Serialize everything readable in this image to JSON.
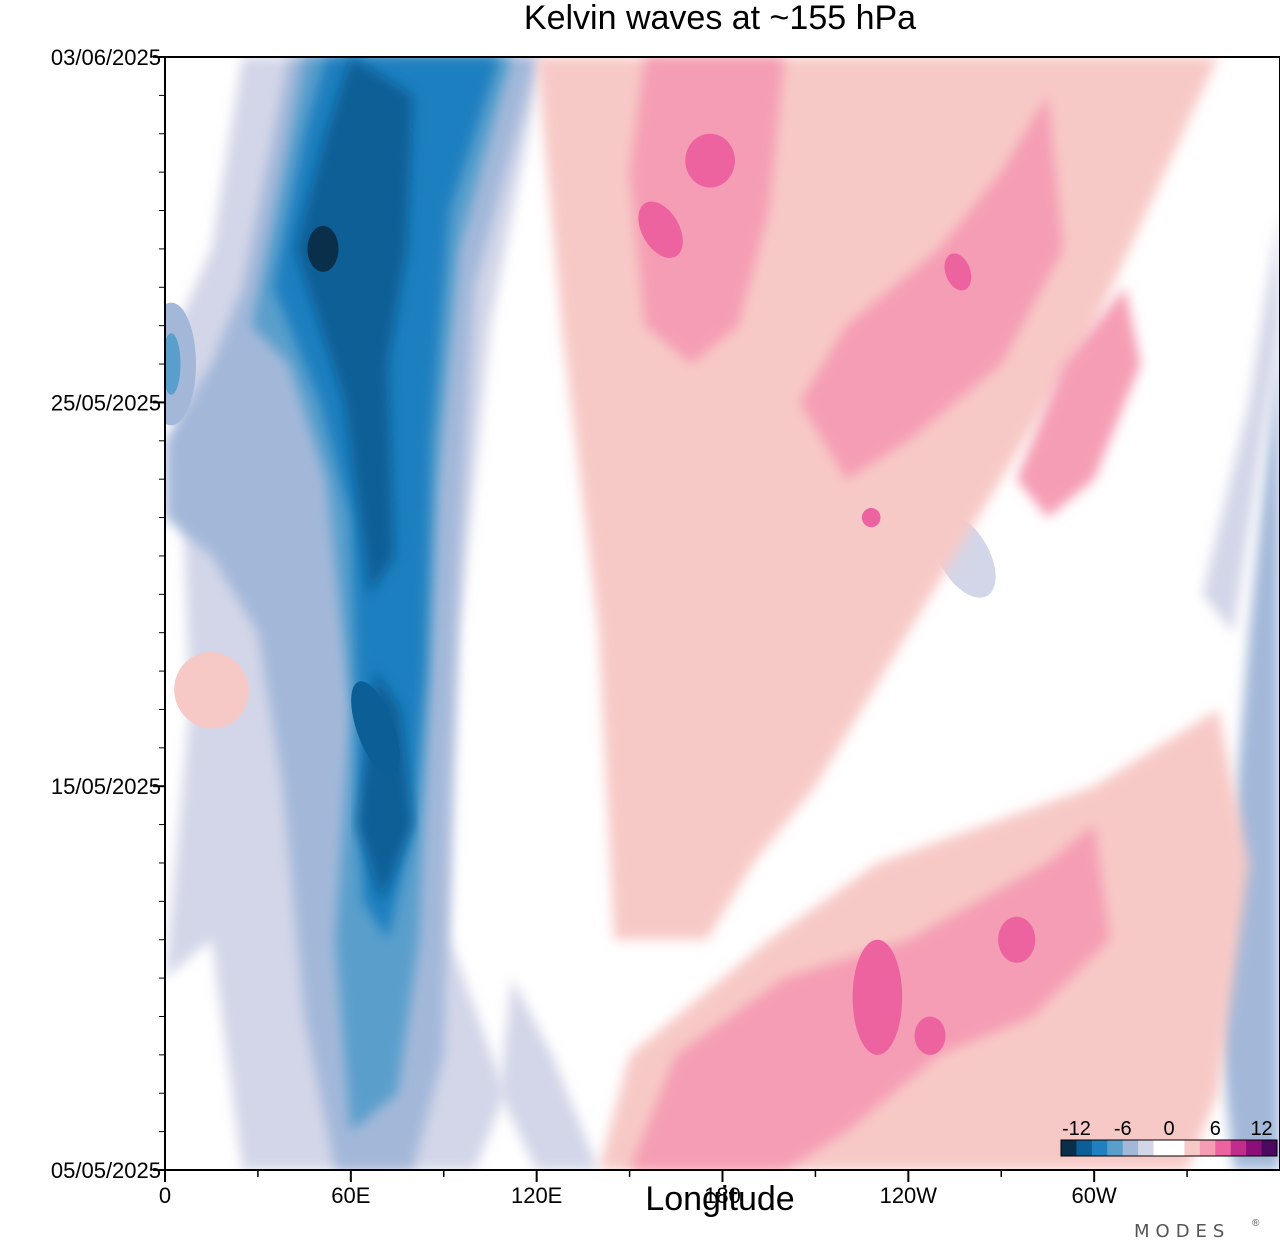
{
  "chart_data": {
    "type": "heatmap",
    "title": "Kelvin waves at ~155 hPa",
    "xlabel": "Longitude",
    "ylabel": "",
    "x_ticks": [
      {
        "lon": 0,
        "label": "0"
      },
      {
        "lon": 60,
        "label": "60E"
      },
      {
        "lon": 120,
        "label": "120E"
      },
      {
        "lon": 180,
        "label": "180"
      },
      {
        "lon": 240,
        "label": "120W"
      },
      {
        "lon": 300,
        "label": "60W"
      }
    ],
    "x_minor_lons": [
      30,
      90,
      150,
      210,
      270,
      330
    ],
    "xlim": [
      0,
      360
    ],
    "y_ticks": [
      {
        "day": 0,
        "label": "05/05/2025"
      },
      {
        "day": 10,
        "label": "15/05/2025"
      },
      {
        "day": 20,
        "label": "25/05/2025"
      },
      {
        "day": 29,
        "label": "03/06/2025"
      }
    ],
    "ylim_days": [
      0,
      29
    ],
    "contour_levels": [
      -14,
      -12,
      -10,
      -8,
      -6,
      -4,
      -2,
      2,
      4,
      6,
      8,
      10,
      12,
      14
    ],
    "colorbar": {
      "tick_labels": [
        {
          "value": -12,
          "label": "-12"
        },
        {
          "value": -6,
          "label": "-6"
        },
        {
          "value": 0,
          "label": "0"
        },
        {
          "value": 6,
          "label": "6"
        },
        {
          "value": 12,
          "label": "12"
        }
      ],
      "colors": [
        "#0a2f4a",
        "#0b5e96",
        "#1f7fbf",
        "#5a9fcc",
        "#a3b8d9",
        "#d3d6e8",
        "#ffffff",
        "#ffffff",
        "#f7c9c6",
        "#f59db4",
        "#ec63a0",
        "#c02d8b",
        "#8a0f78",
        "#4b0a5e"
      ]
    },
    "features": [
      {
        "name": "negative-band-west",
        "sign": "negative",
        "peak": -13,
        "lon_start": 20,
        "lon_end": 70,
        "day_start": 0,
        "day_end": 29
      },
      {
        "name": "negative-core-upper",
        "sign": "negative",
        "peak": -14,
        "lon": 52,
        "day": 24
      },
      {
        "name": "negative-core-lower",
        "sign": "negative",
        "peak": -12,
        "lon": 68,
        "day": 11
      },
      {
        "name": "positive-band-central",
        "sign": "positive",
        "peak": 8,
        "lon_start": 160,
        "lon_end": 195,
        "day_start": 6,
        "day_end": 29
      },
      {
        "name": "positive-band-east-lower",
        "sign": "positive",
        "peak": 10,
        "lon_start": 215,
        "lon_end": 290,
        "day_start": 1,
        "day_end": 12
      },
      {
        "name": "positive-band-east-upper",
        "sign": "positive",
        "peak": 8,
        "lon_start": 230,
        "lon_end": 310,
        "day_start": 16,
        "day_end": 29
      }
    ]
  },
  "branding": {
    "logo_text": "MODES",
    "mark": "®"
  }
}
